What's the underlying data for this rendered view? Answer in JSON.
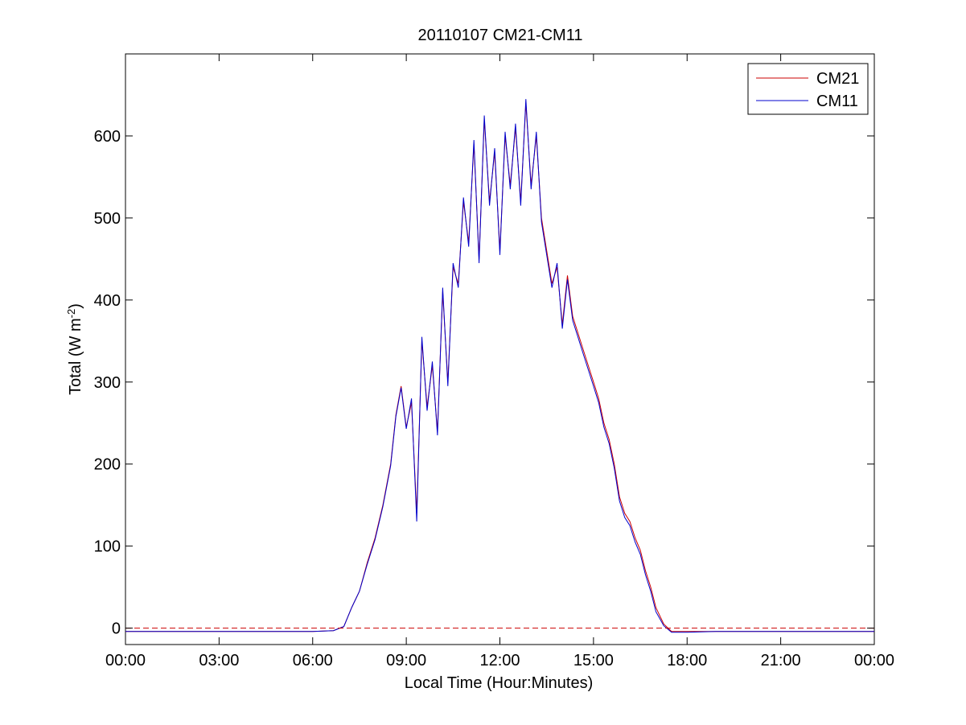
{
  "chart_data": {
    "type": "line",
    "title": "20110107 CM21-CM11",
    "xlabel": "Local Time (Hour:Minutes)",
    "ylabel": {
      "prefix": "Total (W m",
      "superscript": "-2",
      "suffix": ")"
    },
    "xlim": [
      "00:00",
      "24:00"
    ],
    "ylim": [
      -20,
      700
    ],
    "x_ticks": [
      "00:00",
      "03:00",
      "06:00",
      "09:00",
      "12:00",
      "15:00",
      "18:00",
      "21:00",
      "00:00"
    ],
    "y_ticks": [
      0,
      100,
      200,
      300,
      400,
      500,
      600
    ],
    "grid": false,
    "legend_position": "top-right",
    "reference_line": {
      "y": 0,
      "style": "dashed",
      "color": "#cc0000"
    },
    "series": [
      {
        "name": "CM21",
        "color": "#cc0000",
        "x": [
          "00:00",
          "01:00",
          "02:00",
          "03:00",
          "04:00",
          "05:00",
          "06:00",
          "06:40",
          "07:00",
          "07:15",
          "07:30",
          "07:45",
          "08:00",
          "08:15",
          "08:30",
          "08:40",
          "08:50",
          "09:00",
          "09:10",
          "09:20",
          "09:30",
          "09:40",
          "09:50",
          "10:00",
          "10:10",
          "10:20",
          "10:30",
          "10:40",
          "10:50",
          "11:00",
          "11:10",
          "11:20",
          "11:30",
          "11:40",
          "11:50",
          "12:00",
          "12:10",
          "12:20",
          "12:30",
          "12:40",
          "12:50",
          "13:00",
          "13:10",
          "13:20",
          "13:30",
          "13:40",
          "13:50",
          "14:00",
          "14:10",
          "14:20",
          "14:30",
          "14:40",
          "14:50",
          "15:00",
          "15:10",
          "15:20",
          "15:30",
          "15:40",
          "15:50",
          "16:00",
          "16:10",
          "16:20",
          "16:30",
          "16:40",
          "16:50",
          "17:00",
          "17:15",
          "17:30",
          "18:00",
          "19:00",
          "20:00",
          "21:00",
          "22:00",
          "23:00",
          "24:00"
        ],
        "y": [
          -4,
          -4,
          -4,
          -4,
          -4,
          -4,
          -4,
          -3,
          2,
          25,
          45,
          80,
          110,
          150,
          200,
          260,
          295,
          245,
          275,
          140,
          350,
          270,
          320,
          240,
          410,
          300,
          440,
          420,
          520,
          470,
          590,
          450,
          620,
          520,
          580,
          460,
          600,
          540,
          610,
          520,
          640,
          540,
          600,
          500,
          460,
          420,
          440,
          370,
          430,
          380,
          360,
          340,
          320,
          300,
          280,
          250,
          230,
          200,
          160,
          140,
          130,
          110,
          95,
          70,
          50,
          25,
          5,
          -4,
          -4,
          -4,
          -4,
          -4,
          -4,
          -4,
          -4
        ]
      },
      {
        "name": "CM11",
        "color": "#0000cc",
        "x": [
          "00:00",
          "01:00",
          "02:00",
          "03:00",
          "04:00",
          "05:00",
          "06:00",
          "06:40",
          "07:00",
          "07:15",
          "07:30",
          "07:45",
          "08:00",
          "08:15",
          "08:30",
          "08:40",
          "08:50",
          "09:00",
          "09:10",
          "09:20",
          "09:30",
          "09:40",
          "09:50",
          "10:00",
          "10:10",
          "10:20",
          "10:30",
          "10:40",
          "10:50",
          "11:00",
          "11:10",
          "11:20",
          "11:30",
          "11:40",
          "11:50",
          "12:00",
          "12:10",
          "12:20",
          "12:30",
          "12:40",
          "12:50",
          "13:00",
          "13:10",
          "13:20",
          "13:30",
          "13:40",
          "13:50",
          "14:00",
          "14:10",
          "14:20",
          "14:30",
          "14:40",
          "14:50",
          "15:00",
          "15:10",
          "15:20",
          "15:30",
          "15:40",
          "15:50",
          "16:00",
          "16:10",
          "16:20",
          "16:30",
          "16:40",
          "16:50",
          "17:00",
          "17:15",
          "17:30",
          "18:00",
          "19:00",
          "20:00",
          "21:00",
          "22:00",
          "23:00",
          "24:00"
        ],
        "y": [
          -4,
          -4,
          -4,
          -4,
          -4,
          -4,
          -4,
          -3,
          2,
          25,
          45,
          78,
          108,
          148,
          198,
          258,
          293,
          243,
          280,
          130,
          355,
          265,
          325,
          235,
          415,
          295,
          445,
          415,
          525,
          465,
          595,
          445,
          625,
          515,
          585,
          455,
          605,
          535,
          615,
          515,
          645,
          535,
          605,
          495,
          455,
          415,
          445,
          365,
          425,
          375,
          355,
          335,
          315,
          295,
          275,
          245,
          225,
          195,
          155,
          135,
          125,
          105,
          90,
          65,
          45,
          20,
          3,
          -5,
          -5,
          -4,
          -4,
          -4,
          -4,
          -4,
          -4
        ]
      }
    ]
  }
}
